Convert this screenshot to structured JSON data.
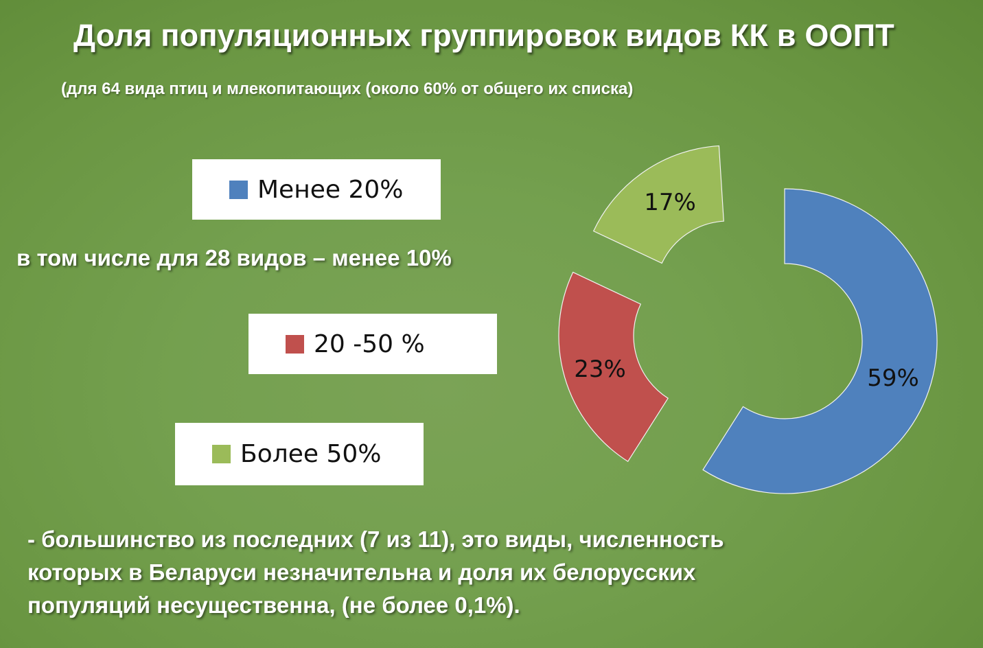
{
  "slide": {
    "title": "Доля популяционных группировок видов КК в ООПТ",
    "subtitle": "(для 64 вида птиц и млекопитающих (около 60% от общего их списка)",
    "note": "в том числе для 28 видов – менее 10%",
    "footer_lines": [
      "- большинство из последних (7 из 11), это виды, численность",
      "которых в Беларуси незначительна и доля их белорусских",
      "популяций несущественна, (не более 0,1%)."
    ],
    "background_color": "#6e9a47"
  },
  "legend": [
    {
      "label": "Менее 20%",
      "color": "#4f81bd"
    },
    {
      "label": "20 -50 %",
      "color": "#c0504d"
    },
    {
      "label": "Более 50%",
      "color": "#9bbb59"
    }
  ],
  "chart_data": {
    "type": "pie",
    "subtype": "exploded-doughnut",
    "title": "Доля популяционных группировок видов КК в ООПТ",
    "subtitle": "(для 64 вида птиц и млекопитающих (около 60% от общего их списка)",
    "categories": [
      "Менее 20%",
      "20 -50 %",
      "Более 50%"
    ],
    "values": [
      59,
      23,
      17
    ],
    "data_labels": [
      "59%",
      "23%",
      "17%"
    ],
    "colors": [
      "#4f81bd",
      "#c0504d",
      "#9bbb59"
    ],
    "legend_position": "left",
    "start_angle_deg": 0,
    "direction": "clockwise"
  }
}
